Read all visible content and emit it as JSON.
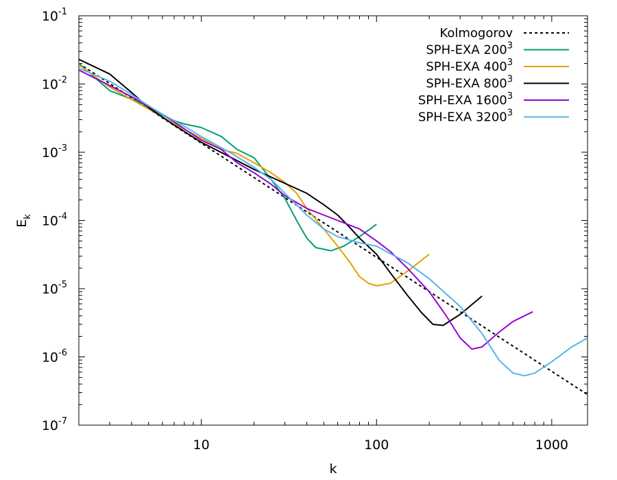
{
  "chart_data": {
    "type": "line",
    "title": "",
    "xlabel": "k",
    "ylabel_base": "E",
    "ylabel_sub": "k",
    "xscale": "log",
    "yscale": "log",
    "xlim": [
      2,
      1600
    ],
    "ylim": [
      1e-07,
      0.1
    ],
    "x_ticks": [
      {
        "value": 10,
        "label": "10"
      },
      {
        "value": 100,
        "label": "100"
      },
      {
        "value": 1000,
        "label": "1000"
      }
    ],
    "y_ticks": [
      {
        "value": 1e-07,
        "base": "10",
        "exp": "-7"
      },
      {
        "value": 1e-06,
        "base": "10",
        "exp": "-6"
      },
      {
        "value": 1e-05,
        "base": "10",
        "exp": "-5"
      },
      {
        "value": 0.0001,
        "base": "10",
        "exp": "-4"
      },
      {
        "value": 0.001,
        "base": "10",
        "exp": "-3"
      },
      {
        "value": 0.01,
        "base": "10",
        "exp": "-2"
      },
      {
        "value": 0.1,
        "base": "10",
        "exp": "-1"
      }
    ],
    "legend_position": "top-right",
    "series": [
      {
        "name": "Kolmogorov",
        "label": "Kolmogorov",
        "label_sup": "",
        "color": "#000000",
        "dash": true,
        "points": [
          [
            2,
            0.02
          ],
          [
            1600,
            2.8e-07
          ]
        ]
      },
      {
        "name": "SPH-EXA 200^3",
        "label": "SPH-EXA 200",
        "label_sup": "3",
        "color": "#009e73",
        "dash": false,
        "points": [
          [
            2,
            0.02
          ],
          [
            3,
            0.008
          ],
          [
            4,
            0.006
          ],
          [
            5,
            0.0047
          ],
          [
            6,
            0.0035
          ],
          [
            7,
            0.0029
          ],
          [
            8,
            0.0026
          ],
          [
            10,
            0.0023
          ],
          [
            13,
            0.0017
          ],
          [
            16,
            0.0011
          ],
          [
            20,
            0.00083
          ],
          [
            25,
            0.0004
          ],
          [
            30,
            0.00021
          ],
          [
            35,
            0.0001
          ],
          [
            40,
            5.5e-05
          ],
          [
            45,
            4e-05
          ],
          [
            55,
            3.6e-05
          ],
          [
            65,
            4.2e-05
          ],
          [
            80,
            5.8e-05
          ],
          [
            100,
            8.8e-05
          ]
        ]
      },
      {
        "name": "SPH-EXA 400^3",
        "label": "SPH-EXA 400",
        "label_sup": "3",
        "color": "#e69f00",
        "dash": false,
        "points": [
          [
            2,
            0.019
          ],
          [
            3,
            0.009
          ],
          [
            5,
            0.0043
          ],
          [
            7,
            0.0026
          ],
          [
            10,
            0.0016
          ],
          [
            13,
            0.0011
          ],
          [
            16,
            0.00096
          ],
          [
            20,
            0.0007
          ],
          [
            25,
            0.0005
          ],
          [
            30,
            0.00036
          ],
          [
            35,
            0.00025
          ],
          [
            40,
            0.00015
          ],
          [
            50,
            7.5e-05
          ],
          [
            60,
            4.2e-05
          ],
          [
            70,
            2.5e-05
          ],
          [
            80,
            1.5e-05
          ],
          [
            90,
            1.2e-05
          ],
          [
            100,
            1.1e-05
          ],
          [
            120,
            1.2e-05
          ],
          [
            150,
            1.8e-05
          ],
          [
            200,
            3.2e-05
          ]
        ]
      },
      {
        "name": "SPH-EXA 800^3",
        "label": "SPH-EXA 800",
        "label_sup": "3",
        "color": "#000000",
        "dash": false,
        "points": [
          [
            2,
            0.023
          ],
          [
            3,
            0.014
          ],
          [
            4,
            0.0075
          ],
          [
            5,
            0.0045
          ],
          [
            7,
            0.0025
          ],
          [
            10,
            0.0014
          ],
          [
            14,
            0.0009
          ],
          [
            20,
            0.00056
          ],
          [
            30,
            0.00035
          ],
          [
            40,
            0.00025
          ],
          [
            50,
            0.00017
          ],
          [
            60,
            0.00012
          ],
          [
            70,
            8e-05
          ],
          [
            80,
            5.5e-05
          ],
          [
            100,
            3.2e-05
          ],
          [
            120,
            1.7e-05
          ],
          [
            150,
            8e-06
          ],
          [
            180,
            4.5e-06
          ],
          [
            210,
            3e-06
          ],
          [
            240,
            2.9e-06
          ],
          [
            300,
            4.2e-06
          ],
          [
            400,
            7.8e-06
          ]
        ]
      },
      {
        "name": "SPH-EXA 1600^3",
        "label": "SPH-EXA 1600",
        "label_sup": "3",
        "color": "#9400d3",
        "dash": false,
        "points": [
          [
            2,
            0.016
          ],
          [
            3,
            0.0095
          ],
          [
            4,
            0.0065
          ],
          [
            6,
            0.0036
          ],
          [
            8,
            0.0022
          ],
          [
            10,
            0.0015
          ],
          [
            13,
            0.0011
          ],
          [
            16,
            0.0007
          ],
          [
            20,
            0.0005
          ],
          [
            25,
            0.00034
          ],
          [
            30,
            0.00023
          ],
          [
            40,
            0.00015
          ],
          [
            50,
            0.00012
          ],
          [
            60,
            0.0001
          ],
          [
            80,
            7.5e-05
          ],
          [
            100,
            5e-05
          ],
          [
            120,
            3.5e-05
          ],
          [
            150,
            2e-05
          ],
          [
            200,
            9e-06
          ],
          [
            250,
            4e-06
          ],
          [
            300,
            1.9e-06
          ],
          [
            350,
            1.3e-06
          ],
          [
            400,
            1.4e-06
          ],
          [
            500,
            2.3e-06
          ],
          [
            600,
            3.3e-06
          ],
          [
            780,
            4.6e-06
          ]
        ]
      },
      {
        "name": "SPH-EXA 3200^3",
        "label": "SPH-EXA 3200",
        "label_sup": "3",
        "color": "#56b4e9",
        "dash": false,
        "points": [
          [
            2,
            0.017
          ],
          [
            3,
            0.011
          ],
          [
            4,
            0.007
          ],
          [
            5,
            0.0048
          ],
          [
            6,
            0.0036
          ],
          [
            8,
            0.0024
          ],
          [
            10,
            0.0017
          ],
          [
            15,
            0.00095
          ],
          [
            20,
            0.0006
          ],
          [
            25,
            0.0004
          ],
          [
            30,
            0.00025
          ],
          [
            40,
            0.00012
          ],
          [
            50,
            7.5e-05
          ],
          [
            60,
            5.8e-05
          ],
          [
            80,
            4.7e-05
          ],
          [
            100,
            4.2e-05
          ],
          [
            150,
            2.4e-05
          ],
          [
            200,
            1.4e-05
          ],
          [
            300,
            5.5e-06
          ],
          [
            400,
            2.2e-06
          ],
          [
            500,
            9e-07
          ],
          [
            600,
            5.8e-07
          ],
          [
            700,
            5.3e-07
          ],
          [
            800,
            5.8e-07
          ],
          [
            1000,
            8.5e-07
          ],
          [
            1300,
            1.4e-06
          ],
          [
            1600,
            1.9e-06
          ]
        ]
      }
    ]
  }
}
